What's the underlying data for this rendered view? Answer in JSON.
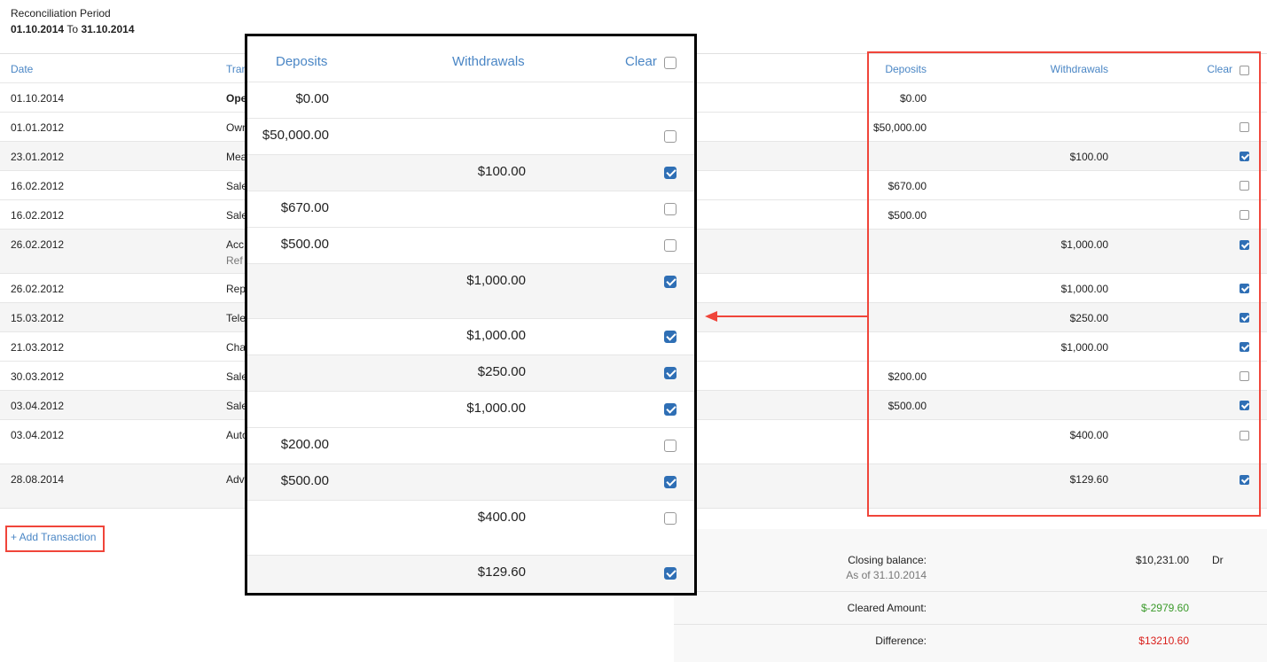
{
  "period": {
    "label": "Reconciliation Period",
    "from": "01.10.2014",
    "to_word": "To",
    "to": "31.10.2014"
  },
  "columns": {
    "date": "Date",
    "transaction": "Tran",
    "deposits": "Deposits",
    "withdrawals": "Withdrawals",
    "clear": "Clear"
  },
  "rows": [
    {
      "date": "01.10.2014",
      "tx": "Ope",
      "bold": true,
      "dep": "$0.00",
      "wd": "",
      "clear": null,
      "gray": false,
      "tall": false
    },
    {
      "date": "01.01.2012",
      "tx": "Own",
      "dep": "$50,000.00",
      "wd": "",
      "clear": false,
      "gray": false,
      "tall": false
    },
    {
      "date": "23.01.2012",
      "tx": "Mea",
      "dep": "",
      "wd": "$100.00",
      "clear": true,
      "gray": true,
      "tall": false
    },
    {
      "date": "16.02.2012",
      "tx": "Sale",
      "dep": "$670.00",
      "wd": "",
      "clear": false,
      "gray": false,
      "tall": false
    },
    {
      "date": "16.02.2012",
      "tx": "Sale",
      "dep": "$500.00",
      "wd": "",
      "clear": false,
      "gray": false,
      "tall": false
    },
    {
      "date": "26.02.2012",
      "tx": "Acc",
      "sub": "Ref",
      "dep": "",
      "wd": "$1,000.00",
      "clear": true,
      "gray": true,
      "tall": true
    },
    {
      "date": "26.02.2012",
      "tx": "Rep",
      "dep": "",
      "wd": "$1,000.00",
      "clear": true,
      "gray": false,
      "tall": false
    },
    {
      "date": "15.03.2012",
      "tx": "Tele",
      "dep": "",
      "wd": "$250.00",
      "clear": true,
      "gray": true,
      "tall": false
    },
    {
      "date": "21.03.2012",
      "tx": "Cha",
      "dep": "",
      "wd": "$1,000.00",
      "clear": true,
      "gray": false,
      "tall": false
    },
    {
      "date": "30.03.2012",
      "tx": "Sale",
      "dep": "$200.00",
      "wd": "",
      "clear": false,
      "gray": false,
      "tall": false
    },
    {
      "date": "03.04.2012",
      "tx": "Sale",
      "dep": "$500.00",
      "wd": "",
      "clear": true,
      "gray": true,
      "tall": false
    },
    {
      "date": "03.04.2012",
      "tx": "Auto",
      "dep": "",
      "wd": "$400.00",
      "clear": false,
      "gray": false,
      "tall": true
    },
    {
      "date": "28.08.2014",
      "tx": "Adv",
      "dep": "",
      "wd": "$129.60",
      "clear": true,
      "gray": true,
      "tall": true
    }
  ],
  "add_transaction": "+ Add Transaction",
  "summary": {
    "closing_label": "Closing balance:",
    "closing_sub": "As of 31.10.2014",
    "closing_value": "$10,231.00",
    "closing_type": "Dr",
    "cleared_label": "Cleared Amount:",
    "cleared_value": "$-2979.60",
    "difference_label": "Difference:",
    "difference_value": "$13210.60"
  },
  "colors": {
    "accent": "#4a86c5",
    "highlight": "#f0453a",
    "positive": "#3a9a2a",
    "negative": "#d9201c"
  }
}
